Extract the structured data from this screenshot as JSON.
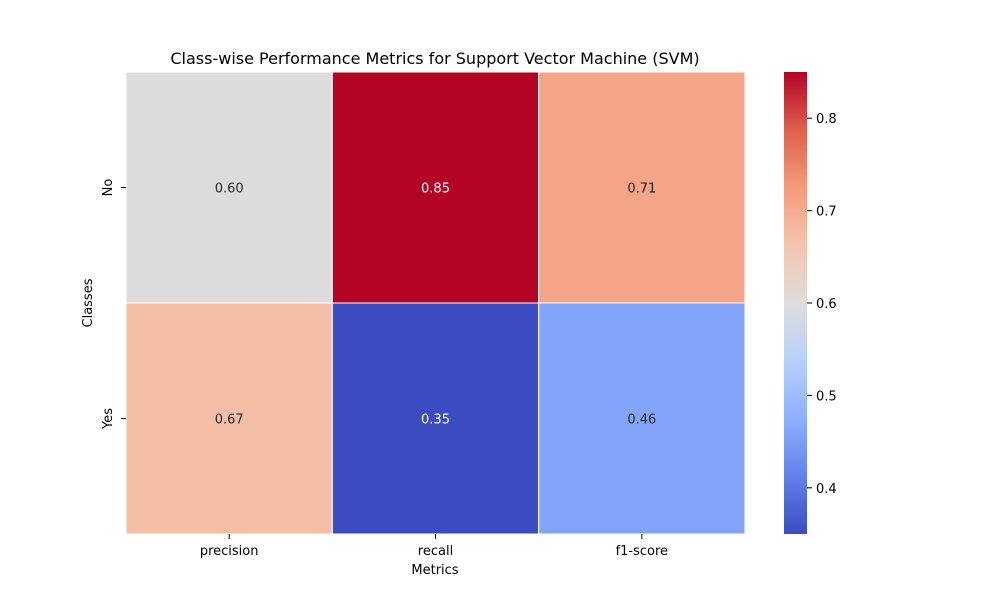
{
  "chart_data": {
    "type": "heatmap",
    "title": "Class-wise Performance Metrics for Support Vector Machine (SVM)",
    "xlabel": "Metrics",
    "ylabel": "Classes",
    "x_categories": [
      "precision",
      "recall",
      "f1-score"
    ],
    "y_categories": [
      "No",
      "Yes"
    ],
    "values": [
      [
        0.6,
        0.85,
        0.71
      ],
      [
        0.67,
        0.35,
        0.46
      ]
    ],
    "value_format": "0.00",
    "colormap": "coolwarm",
    "colorbar": {
      "range": [
        0.35,
        0.85
      ],
      "ticks": [
        0.4,
        0.5,
        0.6,
        0.7,
        0.8
      ],
      "tick_labels": [
        "0.4",
        "0.5",
        "0.6",
        "0.7",
        "0.8"
      ]
    },
    "colors": {
      "low": "#3b4cc0",
      "mid": "#dddcdc",
      "high": "#b40426"
    }
  }
}
